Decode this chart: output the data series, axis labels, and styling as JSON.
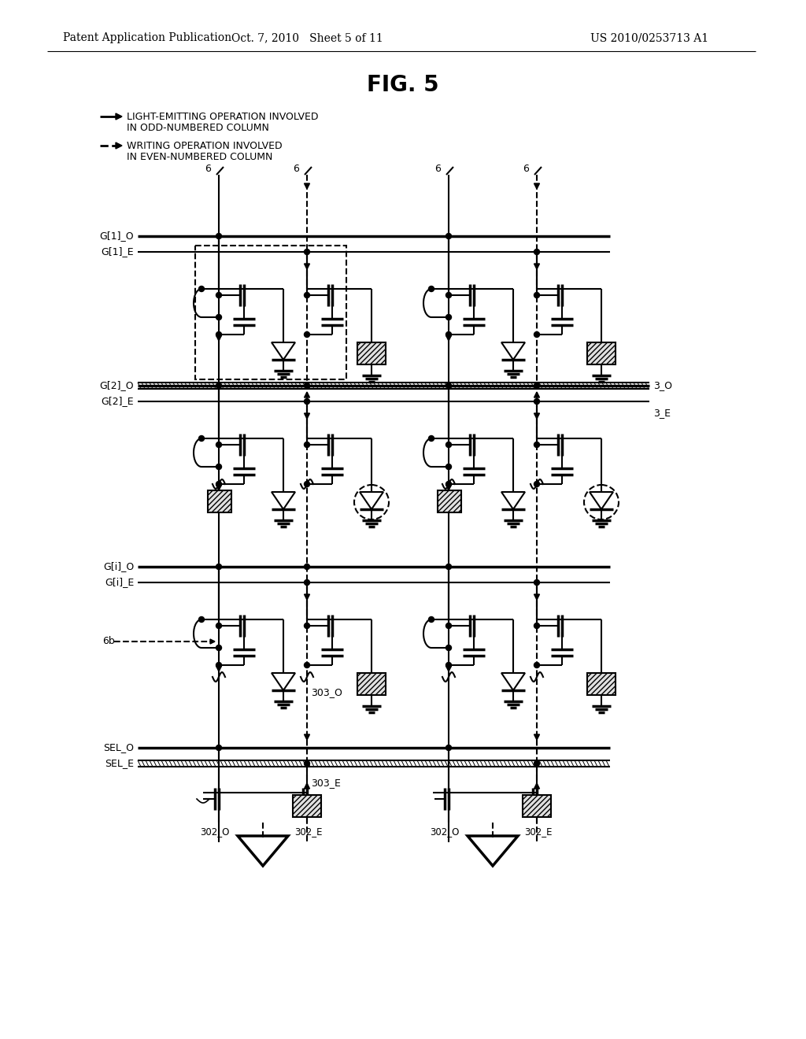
{
  "title": "FIG. 5",
  "header_left": "Patent Application Publication",
  "header_center": "Oct. 7, 2010   Sheet 5 of 11",
  "header_right": "US 2010/0253713 A1",
  "legend_solid_label1": "LIGHT-EMITTING OPERATION INVOLVED",
  "legend_solid_label2": "IN ODD-NUMBERED COLUMN",
  "legend_dashed_label1": "WRITING OPERATION INVOLVED",
  "legend_dashed_label2": "IN EVEN-NUMBERED COLUMN",
  "bg_color": "#ffffff",
  "line_color": "#000000"
}
